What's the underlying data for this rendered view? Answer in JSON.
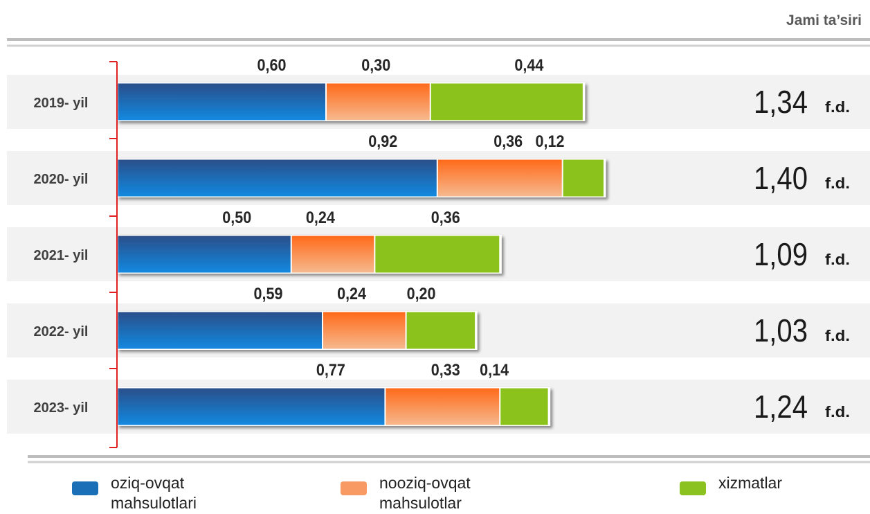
{
  "header": {
    "total_title": "Jami ta’siri"
  },
  "chart_data": {
    "type": "bar",
    "orientation": "horizontal-stacked",
    "categories": [
      "2019- yil",
      "2020- yil",
      "2021- yil",
      "2022- yil",
      "2023- yil"
    ],
    "series": [
      {
        "name": "oziq-ovqat mahsulotlari",
        "values": [
          0.6,
          0.92,
          0.5,
          0.59,
          0.77
        ],
        "labels": [
          "0,60",
          "0,92",
          "0,50",
          "0,59",
          "0,77"
        ]
      },
      {
        "name": "nooziq-ovqat mahsulotlar",
        "values": [
          0.3,
          0.36,
          0.24,
          0.24,
          0.33
        ],
        "labels": [
          "0,30",
          "0,36",
          "0,24",
          "0,24",
          "0,33"
        ]
      },
      {
        "name": "xizmatlar",
        "values": [
          0.44,
          0.12,
          0.36,
          0.2,
          0.14
        ],
        "labels": [
          "0,44",
          "0,12",
          "0,36",
          "0,20",
          "0,14"
        ]
      }
    ],
    "totals": [
      "1,34",
      "1,40",
      "1,09",
      "1,03",
      "1,24"
    ],
    "total_unit": "f.d.",
    "colors": {
      "food": "#1e6fb8",
      "nonfood": "#f58a4b",
      "services": "#8cc21f",
      "axis": "#e02020"
    }
  },
  "legend": [
    {
      "line1": "oziq-ovqat",
      "line2": "mahsulotlari",
      "color": "#1a6fb6"
    },
    {
      "line1": "nooziq-ovqat",
      "line2": "mahsulotlar",
      "color": "#f79a63"
    },
    {
      "line1": "xizmatlar",
      "line2": "",
      "color": "#8cc21f"
    }
  ]
}
